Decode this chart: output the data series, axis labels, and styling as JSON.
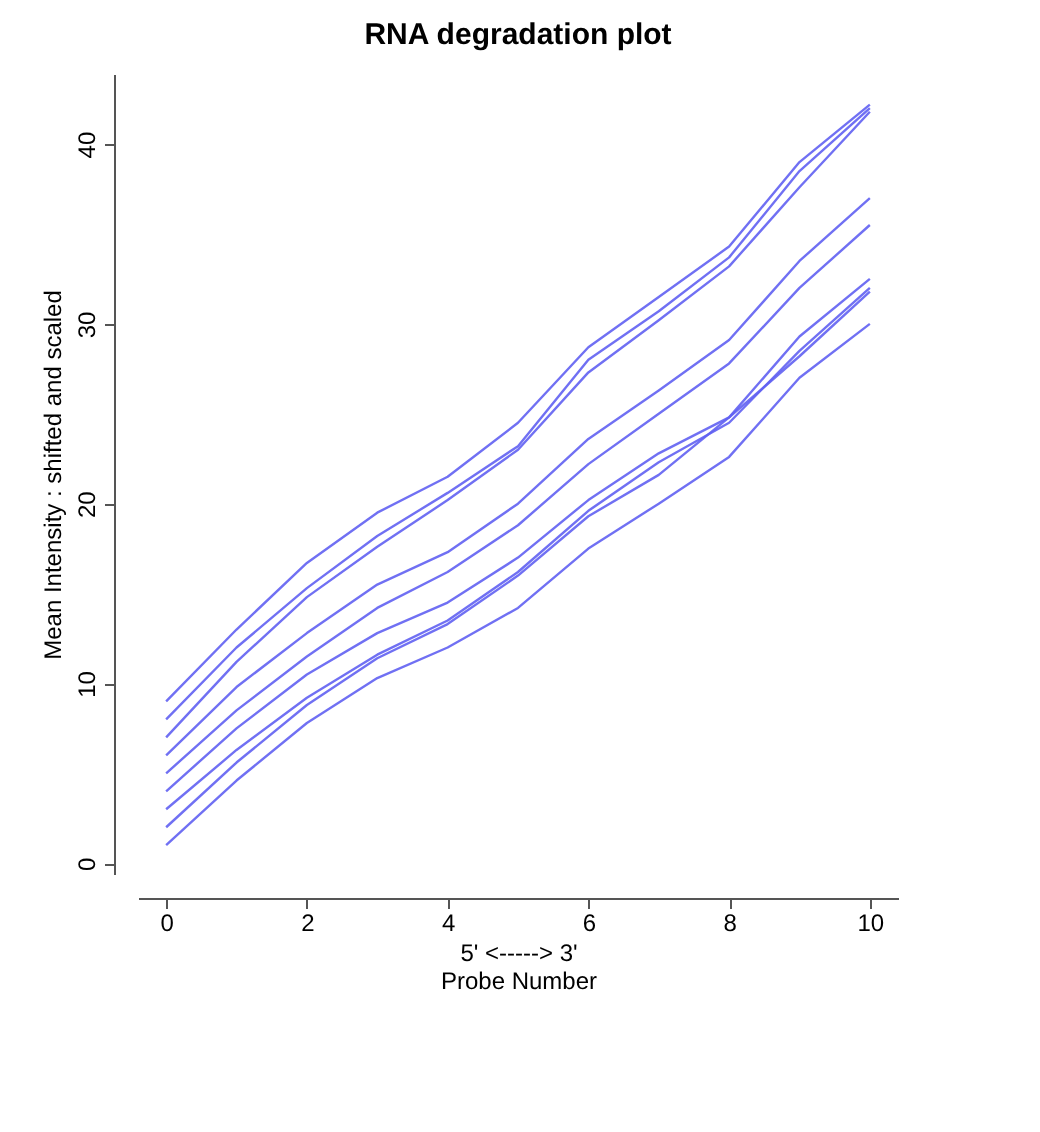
{
  "chart_data": {
    "type": "line",
    "title": "RNA degradation plot",
    "xlabel": "5' <-----> 3'\nProbe Number",
    "ylabel": "Mean Intensity : shifted and scaled",
    "x": [
      0,
      1,
      2,
      3,
      4,
      5,
      6,
      7,
      8,
      9,
      10
    ],
    "xlim": [
      -0.4,
      10.4
    ],
    "xticks": [
      0,
      2,
      4,
      6,
      8,
      10
    ],
    "ylim": [
      -0.6,
      43.9
    ],
    "yticks": [
      0,
      10,
      20,
      30,
      40
    ],
    "grid": false,
    "legend": false,
    "line_style": "solid",
    "series": [
      {
        "color": "#6161f2",
        "values": [
          9,
          13,
          16.7,
          19.5,
          21.5,
          24.5,
          28.7,
          31.5,
          34.3,
          39,
          42.2
        ]
      },
      {
        "color": "#6161f2",
        "values": [
          8,
          12,
          15.3,
          18.2,
          20.6,
          23.2,
          28,
          30.7,
          33.7,
          38.5,
          42
        ]
      },
      {
        "color": "#6161f2",
        "values": [
          7,
          11.2,
          14.8,
          17.6,
          20.2,
          23,
          27.3,
          30.2,
          33.2,
          37.6,
          41.8
        ]
      },
      {
        "color": "#6161f2",
        "values": [
          6,
          9.8,
          12.8,
          15.5,
          17.3,
          20,
          23.6,
          26.3,
          29.1,
          33.5,
          37
        ]
      },
      {
        "color": "#6161f2",
        "values": [
          5,
          8.5,
          11.5,
          14.2,
          16.2,
          18.8,
          22.2,
          25,
          27.8,
          32,
          35.5
        ]
      },
      {
        "color": "#6161f2",
        "values": [
          4,
          7.5,
          10.5,
          12.8,
          14.5,
          17,
          20.2,
          22.8,
          24.8,
          29.3,
          32.5
        ]
      },
      {
        "color": "#6161f2",
        "values": [
          3,
          6.3,
          9.2,
          11.6,
          13.5,
          16.2,
          19.6,
          22.3,
          24.5,
          28.5,
          32
        ]
      },
      {
        "color": "#6161f2",
        "values": [
          2,
          5.6,
          8.8,
          11.4,
          13.3,
          16,
          19.3,
          21.6,
          24.8,
          28.2,
          31.8
        ]
      },
      {
        "color": "#6161f2",
        "values": [
          1,
          4.6,
          7.8,
          10.3,
          12,
          14.2,
          17.5,
          20,
          22.6,
          27,
          30
        ]
      }
    ]
  }
}
